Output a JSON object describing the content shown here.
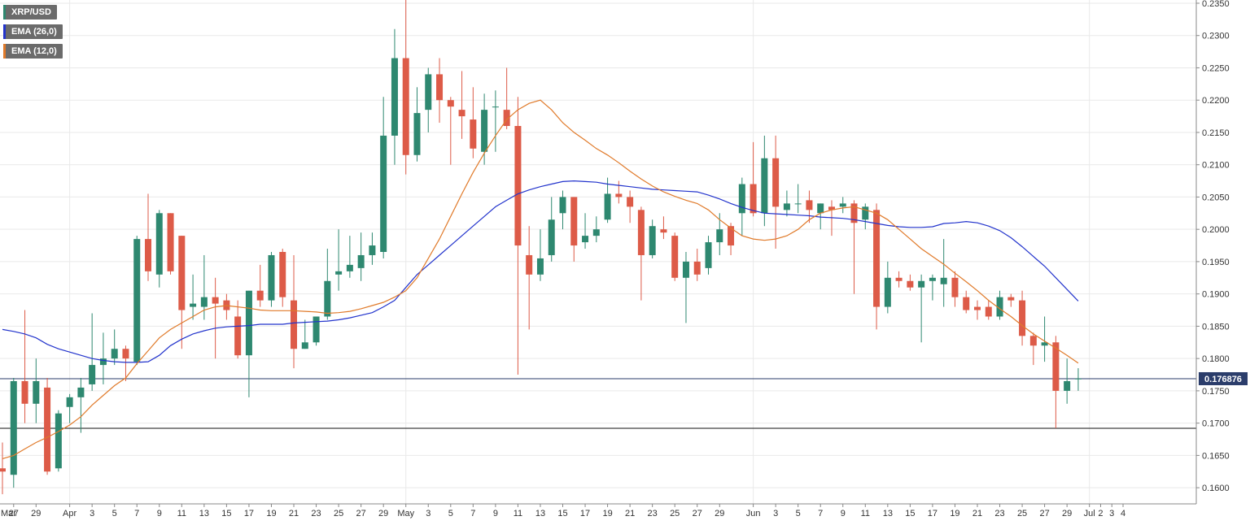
{
  "colors": {
    "up": "#2e8870",
    "down": "#dd5b48",
    "ema26": "#2233cc",
    "ema12": "#e07a2a",
    "price_line": "#2b3d6b",
    "support_line": "#111111",
    "grid": "#e9e9e9",
    "background": "#ffffff",
    "legend_bg": "#6b6b6b"
  },
  "legend": [
    {
      "label": "XRP/USD",
      "color": "#2e8870"
    },
    {
      "label": "EMA (26,0)",
      "color": "#2233cc"
    },
    {
      "label": "EMA (12,0)",
      "color": "#e07a2a"
    }
  ],
  "current_price_label": "0.176876",
  "chart_data": {
    "type": "candlestick",
    "symbol": "XRP/USD",
    "ylim": [
      0.1575,
      0.2355
    ],
    "y_ticks": [
      "0.2350",
      "0.2300",
      "0.2250",
      "0.2200",
      "0.2150",
      "0.2100",
      "0.2050",
      "0.2000",
      "0.1950",
      "0.1900",
      "0.1850",
      "0.1800",
      "0.1750",
      "0.1700",
      "0.1650",
      "0.1600"
    ],
    "x_ticks": [
      {
        "i": 1,
        "label": "27"
      },
      {
        "i": 3,
        "label": "29"
      },
      {
        "i": 6,
        "label": "Apr"
      },
      {
        "i": 8,
        "label": "3"
      },
      {
        "i": 10,
        "label": "5"
      },
      {
        "i": 12,
        "label": "7"
      },
      {
        "i": 14,
        "label": "9"
      },
      {
        "i": 16,
        "label": "11"
      },
      {
        "i": 18,
        "label": "13"
      },
      {
        "i": 20,
        "label": "15"
      },
      {
        "i": 22,
        "label": "17"
      },
      {
        "i": 24,
        "label": "19"
      },
      {
        "i": 26,
        "label": "21"
      },
      {
        "i": 28,
        "label": "23"
      },
      {
        "i": 30,
        "label": "25"
      },
      {
        "i": 32,
        "label": "27"
      },
      {
        "i": 34,
        "label": "29"
      },
      {
        "i": 36,
        "label": "May"
      },
      {
        "i": 38,
        "label": "3"
      },
      {
        "i": 40,
        "label": "5"
      },
      {
        "i": 42,
        "label": "7"
      },
      {
        "i": 44,
        "label": "9"
      },
      {
        "i": 46,
        "label": "11"
      },
      {
        "i": 48,
        "label": "13"
      },
      {
        "i": 50,
        "label": "15"
      },
      {
        "i": 52,
        "label": "17"
      },
      {
        "i": 54,
        "label": "19"
      },
      {
        "i": 56,
        "label": "21"
      },
      {
        "i": 58,
        "label": "23"
      },
      {
        "i": 60,
        "label": "25"
      },
      {
        "i": 62,
        "label": "27"
      },
      {
        "i": 64,
        "label": "29"
      },
      {
        "i": 67,
        "label": "Jun"
      },
      {
        "i": 69,
        "label": "3"
      },
      {
        "i": 71,
        "label": "5"
      },
      {
        "i": 73,
        "label": "7"
      },
      {
        "i": 75,
        "label": "9"
      },
      {
        "i": 77,
        "label": "11"
      },
      {
        "i": 79,
        "label": "13"
      },
      {
        "i": 81,
        "label": "15"
      },
      {
        "i": 83,
        "label": "17"
      },
      {
        "i": 85,
        "label": "19"
      },
      {
        "i": 87,
        "label": "21"
      },
      {
        "i": 89,
        "label": "23"
      },
      {
        "i": 91,
        "label": "25"
      },
      {
        "i": 93,
        "label": "27"
      },
      {
        "i": 95,
        "label": "29"
      },
      {
        "i": 97,
        "label": "Jul"
      },
      {
        "i": 98,
        "label": "2"
      },
      {
        "i": 99,
        "label": "3"
      },
      {
        "i": 100,
        "label": "4"
      }
    ],
    "month_starts": [
      6,
      36,
      67,
      97
    ],
    "x_label": "Mar",
    "last_price": 0.176876,
    "support_level": 0.1692,
    "candles": [
      [
        0.163,
        0.167,
        0.159,
        0.1625
      ],
      [
        0.162,
        0.177,
        0.16,
        0.1765
      ],
      [
        0.1765,
        0.1875,
        0.17,
        0.173
      ],
      [
        0.173,
        0.18,
        0.17,
        0.1765
      ],
      [
        0.1755,
        0.177,
        0.162,
        0.1625
      ],
      [
        0.163,
        0.172,
        0.1625,
        0.1715
      ],
      [
        0.1725,
        0.1745,
        0.17,
        0.174
      ],
      [
        0.174,
        0.177,
        0.1685,
        0.1755
      ],
      [
        0.176,
        0.187,
        0.175,
        0.179
      ],
      [
        0.179,
        0.184,
        0.176,
        0.18
      ],
      [
        0.18,
        0.1845,
        0.179,
        0.1815
      ],
      [
        0.1815,
        0.182,
        0.1765,
        0.18
      ],
      [
        0.1795,
        0.199,
        0.179,
        0.1985
      ],
      [
        0.1985,
        0.2055,
        0.192,
        0.1935
      ],
      [
        0.193,
        0.203,
        0.191,
        0.2025
      ],
      [
        0.2025,
        0.2025,
        0.193,
        0.1935
      ],
      [
        0.199,
        0.199,
        0.1815,
        0.1875
      ],
      [
        0.188,
        0.193,
        0.186,
        0.1885
      ],
      [
        0.188,
        0.196,
        0.186,
        0.1895
      ],
      [
        0.1895,
        0.1925,
        0.18,
        0.1885
      ],
      [
        0.189,
        0.19,
        0.186,
        0.1875
      ],
      [
        0.1865,
        0.189,
        0.18,
        0.1805
      ],
      [
        0.1805,
        0.1905,
        0.174,
        0.1905
      ],
      [
        0.1905,
        0.1945,
        0.188,
        0.189
      ],
      [
        0.189,
        0.1965,
        0.188,
        0.196
      ],
      [
        0.1965,
        0.197,
        0.188,
        0.1895
      ],
      [
        0.189,
        0.196,
        0.1785,
        0.1815
      ],
      [
        0.1815,
        0.186,
        0.1815,
        0.1825
      ],
      [
        0.1825,
        0.186,
        0.182,
        0.1865
      ],
      [
        0.1865,
        0.197,
        0.186,
        0.192
      ],
      [
        0.193,
        0.2,
        0.1905,
        0.1935
      ],
      [
        0.1935,
        0.199,
        0.1925,
        0.1945
      ],
      [
        0.194,
        0.1995,
        0.192,
        0.196
      ],
      [
        0.196,
        0.1995,
        0.1945,
        0.1975
      ],
      [
        0.1965,
        0.2205,
        0.1955,
        0.2145
      ],
      [
        0.2145,
        0.231,
        0.21,
        0.2265
      ],
      [
        0.2265,
        0.2355,
        0.2085,
        0.2115
      ],
      [
        0.2115,
        0.222,
        0.2105,
        0.218
      ],
      [
        0.2185,
        0.225,
        0.215,
        0.224
      ],
      [
        0.224,
        0.2265,
        0.2165,
        0.22
      ],
      [
        0.22,
        0.2205,
        0.21,
        0.219
      ],
      [
        0.2185,
        0.2245,
        0.214,
        0.2175
      ],
      [
        0.217,
        0.222,
        0.211,
        0.2125
      ],
      [
        0.212,
        0.221,
        0.21,
        0.2185
      ],
      [
        0.219,
        0.2215,
        0.212,
        0.219
      ],
      [
        0.2185,
        0.225,
        0.2155,
        0.216
      ],
      [
        0.216,
        0.2205,
        0.1775,
        0.1975
      ],
      [
        0.196,
        0.2005,
        0.1845,
        0.193
      ],
      [
        0.193,
        0.2,
        0.192,
        0.1955
      ],
      [
        0.196,
        0.205,
        0.195,
        0.2015
      ],
      [
        0.2025,
        0.206,
        0.2,
        0.205
      ],
      [
        0.205,
        0.205,
        0.195,
        0.1975
      ],
      [
        0.198,
        0.2025,
        0.197,
        0.199
      ],
      [
        0.199,
        0.202,
        0.198,
        0.2
      ],
      [
        0.2015,
        0.208,
        0.201,
        0.2055
      ],
      [
        0.2055,
        0.2075,
        0.204,
        0.205
      ],
      [
        0.205,
        0.206,
        0.201,
        0.2035
      ],
      [
        0.203,
        0.2035,
        0.189,
        0.196
      ],
      [
        0.196,
        0.2015,
        0.1955,
        0.2005
      ],
      [
        0.2,
        0.202,
        0.1985,
        0.1995
      ],
      [
        0.199,
        0.1995,
        0.192,
        0.1925
      ],
      [
        0.1925,
        0.1965,
        0.1855,
        0.195
      ],
      [
        0.195,
        0.197,
        0.192,
        0.193
      ],
      [
        0.194,
        0.199,
        0.193,
        0.198
      ],
      [
        0.198,
        0.2025,
        0.196,
        0.2
      ],
      [
        0.2005,
        0.201,
        0.196,
        0.1975
      ],
      [
        0.2025,
        0.208,
        0.199,
        0.207
      ],
      [
        0.207,
        0.2135,
        0.202,
        0.2025
      ],
      [
        0.2025,
        0.2145,
        0.2005,
        0.211
      ],
      [
        0.211,
        0.2145,
        0.197,
        0.2035
      ],
      [
        0.203,
        0.206,
        0.202,
        0.204
      ],
      [
        0.204,
        0.207,
        0.2025,
        0.204
      ],
      [
        0.2045,
        0.206,
        0.201,
        0.203
      ],
      [
        0.2025,
        0.204,
        0.2,
        0.204
      ],
      [
        0.2035,
        0.2045,
        0.199,
        0.203
      ],
      [
        0.2035,
        0.205,
        0.2025,
        0.204
      ],
      [
        0.204,
        0.2045,
        0.19,
        0.201
      ],
      [
        0.2015,
        0.204,
        0.2,
        0.2035
      ],
      [
        0.203,
        0.204,
        0.1845,
        0.188
      ],
      [
        0.188,
        0.195,
        0.187,
        0.1925
      ],
      [
        0.1925,
        0.1935,
        0.191,
        0.192
      ],
      [
        0.192,
        0.193,
        0.1905,
        0.191
      ],
      [
        0.191,
        0.193,
        0.1825,
        0.192
      ],
      [
        0.192,
        0.193,
        0.189,
        0.1925
      ],
      [
        0.1915,
        0.1985,
        0.188,
        0.1925
      ],
      [
        0.1925,
        0.1935,
        0.188,
        0.1895
      ],
      [
        0.1895,
        0.1905,
        0.187,
        0.1875
      ],
      [
        0.188,
        0.189,
        0.186,
        0.1875
      ],
      [
        0.188,
        0.189,
        0.186,
        0.1865
      ],
      [
        0.1865,
        0.1905,
        0.186,
        0.1895
      ],
      [
        0.1895,
        0.19,
        0.188,
        0.189
      ],
      [
        0.189,
        0.1905,
        0.182,
        0.1835
      ],
      [
        0.1835,
        0.184,
        0.179,
        0.182
      ],
      [
        0.182,
        0.1865,
        0.1795,
        0.1825
      ],
      [
        0.1825,
        0.1835,
        0.1692,
        0.175
      ],
      [
        0.175,
        0.18,
        0.173,
        0.1765
      ],
      [
        0.1769,
        0.1785,
        0.175,
        0.1769
      ]
    ],
    "series": [
      {
        "name": "EMA (26,0)",
        "values": [
          0.1845,
          0.1842,
          0.1838,
          0.1832,
          0.1822,
          0.1815,
          0.181,
          0.1805,
          0.18,
          0.1797,
          0.1795,
          0.1794,
          0.1794,
          0.1795,
          0.1805,
          0.182,
          0.183,
          0.1838,
          0.1843,
          0.1847,
          0.1849,
          0.185,
          0.1851,
          0.1853,
          0.1853,
          0.1853,
          0.1855,
          0.1856,
          0.1857,
          0.1858,
          0.186,
          0.1863,
          0.1867,
          0.1871,
          0.188,
          0.189,
          0.191,
          0.193,
          0.1945,
          0.196,
          0.1975,
          0.199,
          0.2005,
          0.202,
          0.2035,
          0.2045,
          0.2055,
          0.2061,
          0.2066,
          0.207,
          0.2074,
          0.2075,
          0.2074,
          0.2073,
          0.207,
          0.2068,
          0.2066,
          0.2064,
          0.2062,
          0.2061,
          0.206,
          0.2059,
          0.2058,
          0.2053,
          0.2047,
          0.204,
          0.2034,
          0.2029,
          0.2025,
          0.2024,
          0.2023,
          0.2022,
          0.2021,
          0.2019,
          0.2018,
          0.2017,
          0.2015,
          0.2012,
          0.2009,
          0.2006,
          0.2004,
          0.2003,
          0.2003,
          0.2004,
          0.2009,
          0.201,
          0.2012,
          0.201,
          0.2005,
          0.1998,
          0.1987,
          0.1973,
          0.1958,
          0.1943,
          0.1925,
          0.1907,
          0.1889
        ]
      },
      {
        "name": "EMA (12,0)",
        "values": [
          0.1645,
          0.165,
          0.166,
          0.167,
          0.1678,
          0.1687,
          0.1697,
          0.171,
          0.1728,
          0.1743,
          0.1758,
          0.177,
          0.1792,
          0.1812,
          0.1832,
          0.1845,
          0.1855,
          0.1865,
          0.1875,
          0.188,
          0.1882,
          0.188,
          0.1878,
          0.1875,
          0.1874,
          0.1874,
          0.1874,
          0.1873,
          0.1872,
          0.187,
          0.1871,
          0.1873,
          0.1877,
          0.1882,
          0.1887,
          0.1895,
          0.1905,
          0.1925,
          0.1955,
          0.1985,
          0.202,
          0.2055,
          0.2088,
          0.2118,
          0.2145,
          0.217,
          0.2185,
          0.2195,
          0.22,
          0.2185,
          0.2165,
          0.215,
          0.2138,
          0.2125,
          0.2115,
          0.2103,
          0.209,
          0.2078,
          0.2067,
          0.2058,
          0.2051,
          0.2045,
          0.204,
          0.203,
          0.2015,
          0.2002,
          0.199,
          0.1985,
          0.1983,
          0.1985,
          0.199,
          0.2,
          0.2015,
          0.2025,
          0.203,
          0.2033,
          0.2035,
          0.203,
          0.2025,
          0.2015,
          0.2,
          0.1985,
          0.197,
          0.1958,
          0.1946,
          0.1932,
          0.1919,
          0.1905,
          0.189,
          0.1877,
          0.1865,
          0.1851,
          0.1838,
          0.1827,
          0.1816,
          0.1805,
          0.1793
        ]
      }
    ],
    "grid": true,
    "legend_position": "top-left"
  }
}
